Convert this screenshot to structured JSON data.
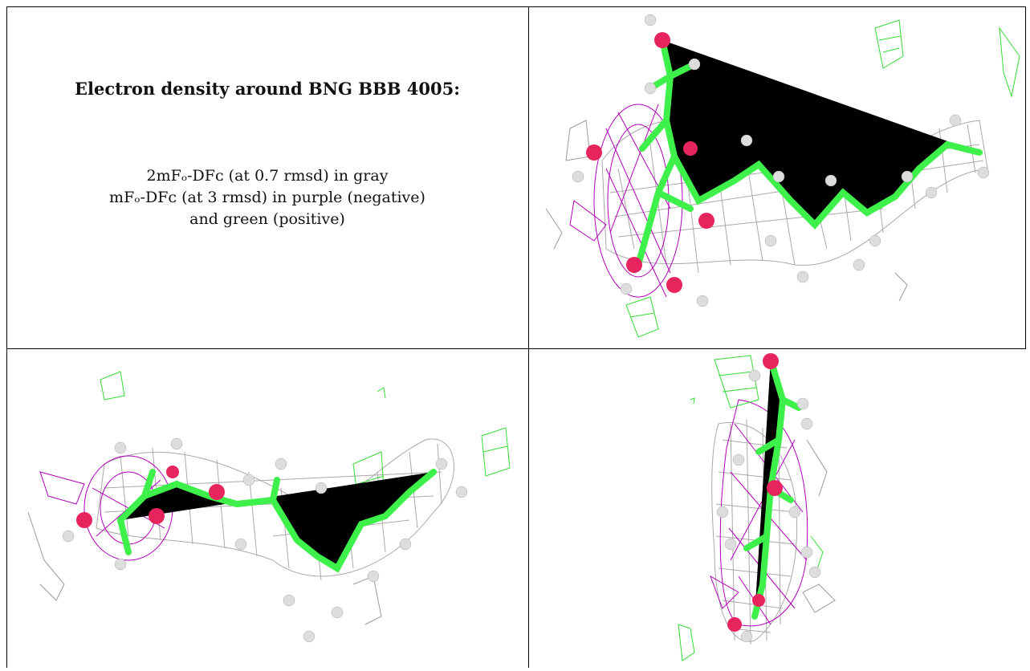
{
  "caption": {
    "title": "Electron density around BNG BBB 4005:",
    "line1": "2mFₒ-DFᴄ (at 0.7 rmsd) in gray",
    "line2": "mFₒ-DFᴄ (at 3 rmsd) in purple (negative)",
    "line3": "and green (positive)"
  },
  "colors": {
    "gray_mesh": "#9a9a9a",
    "negative_mesh": "#b000b8",
    "positive_mesh": "#33dd33",
    "carbon": "#3ef04a",
    "oxygen": "#e8245f",
    "hydrogen": "#dddddd"
  },
  "panels": [
    {
      "name": "view-top-right",
      "icon": "molecule-density-view-1"
    },
    {
      "name": "view-bottom-left",
      "icon": "molecule-density-view-2"
    },
    {
      "name": "view-bottom-right",
      "icon": "molecule-density-view-3"
    }
  ]
}
